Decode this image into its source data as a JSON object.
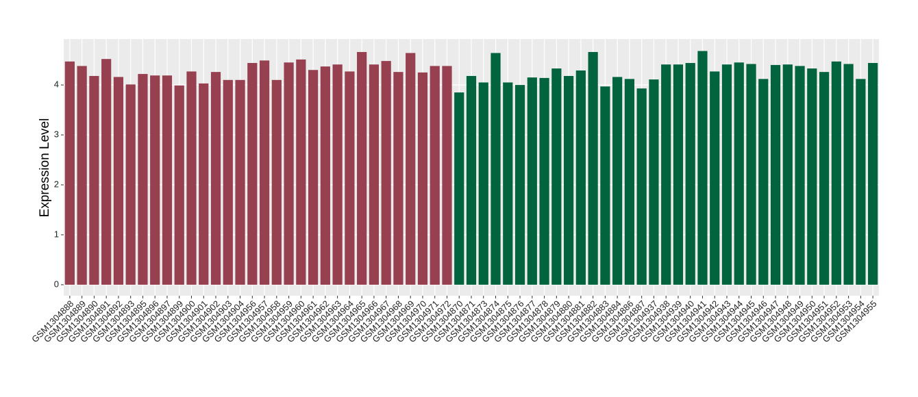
{
  "chart_data": {
    "type": "bar",
    "y_label": "Expression Level",
    "categories": [
      "GSM1304888",
      "GSM1304889",
      "GSM1304890",
      "GSM1304891",
      "GSM1304892",
      "GSM1304893",
      "GSM1304895",
      "GSM1304896",
      "GSM1304897",
      "GSM1304899",
      "GSM1304900",
      "GSM1304901",
      "GSM1304902",
      "GSM1304903",
      "GSM1304904",
      "GSM1304956",
      "GSM1304957",
      "GSM1304958",
      "GSM1304959",
      "GSM1304960",
      "GSM1304961",
      "GSM1304962",
      "GSM1304963",
      "GSM1304964",
      "GSM1304965",
      "GSM1304966",
      "GSM1304967",
      "GSM1304968",
      "GSM1304969",
      "GSM1304970",
      "GSM1304971",
      "GSM1304972",
      "GSM1304870",
      "GSM1304871",
      "GSM1304873",
      "GSM1304874",
      "GSM1304875",
      "GSM1304876",
      "GSM1304877",
      "GSM1304878",
      "GSM1304879",
      "GSM1304880",
      "GSM1304881",
      "GSM1304882",
      "GSM1304883",
      "GSM1304884",
      "GSM1304886",
      "GSM1304887",
      "GSM1304937",
      "GSM1304938",
      "GSM1304939",
      "GSM1304940",
      "GSM1304941",
      "GSM1304942",
      "GSM1304943",
      "GSM1304944",
      "GSM1304945",
      "GSM1304946",
      "GSM1304947",
      "GSM1304948",
      "GSM1304949",
      "GSM1304950",
      "GSM1304951",
      "GSM1304952",
      "GSM1304953",
      "GSM1304954",
      "GSM1304955"
    ],
    "values": [
      4.47,
      4.38,
      4.18,
      4.52,
      4.16,
      4.01,
      4.22,
      4.19,
      4.19,
      3.99,
      4.27,
      4.03,
      4.26,
      4.1,
      4.1,
      4.44,
      4.49,
      4.1,
      4.45,
      4.51,
      4.3,
      4.37,
      4.41,
      4.27,
      4.66,
      4.41,
      4.48,
      4.26,
      4.64,
      4.25,
      4.38,
      4.38,
      3.85,
      4.18,
      4.05,
      4.64,
      4.05,
      4.0,
      4.15,
      4.14,
      4.33,
      4.18,
      4.29,
      4.66,
      3.97,
      4.16,
      4.12,
      3.93,
      4.11,
      4.41,
      4.41,
      4.44,
      4.68,
      4.27,
      4.41,
      4.45,
      4.42,
      4.12,
      4.4,
      4.41,
      4.38,
      4.33,
      4.26,
      4.47,
      4.42,
      4.12,
      4.44
    ],
    "colors": [
      "#964050",
      "#964050",
      "#964050",
      "#964050",
      "#964050",
      "#964050",
      "#964050",
      "#964050",
      "#964050",
      "#964050",
      "#964050",
      "#964050",
      "#964050",
      "#964050",
      "#964050",
      "#964050",
      "#964050",
      "#964050",
      "#964050",
      "#964050",
      "#964050",
      "#964050",
      "#964050",
      "#964050",
      "#964050",
      "#964050",
      "#964050",
      "#964050",
      "#964050",
      "#964050",
      "#964050",
      "#964050",
      "#02643f",
      "#02643f",
      "#02643f",
      "#02643f",
      "#02643f",
      "#02643f",
      "#02643f",
      "#02643f",
      "#02643f",
      "#02643f",
      "#02643f",
      "#02643f",
      "#02643f",
      "#02643f",
      "#02643f",
      "#02643f",
      "#02643f",
      "#02643f",
      "#02643f",
      "#02643f",
      "#02643f",
      "#02643f",
      "#02643f",
      "#02643f",
      "#02643f",
      "#02643f",
      "#02643f",
      "#02643f",
      "#02643f",
      "#02643f",
      "#02643f",
      "#02643f",
      "#02643f",
      "#02643f",
      "#02643f"
    ],
    "ylim": [
      -0.22,
      4.92
    ],
    "yticks": [
      0,
      1,
      2,
      3,
      4
    ],
    "grid": true
  }
}
